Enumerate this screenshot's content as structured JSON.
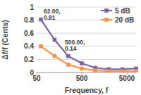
{
  "chart_data": {
    "type": "line",
    "x_label": "Frequency, f",
    "y_label": "Δf/f (Cents)",
    "x": [
      62,
      125,
      250,
      500,
      1000,
      2000,
      4000,
      8000
    ],
    "series": [
      {
        "name": "5 dB",
        "color": "#8064a2",
        "marker": "square",
        "values": [
          0.81,
          0.5,
          0.25,
          0.14,
          0.07,
          0.05,
          0.05,
          0.06
        ]
      },
      {
        "name": "20 dB",
        "color": "#f79646",
        "marker": "square",
        "values": [
          0.4,
          0.25,
          0.12,
          0.06,
          0.03,
          0.02,
          0.02,
          0.02
        ]
      }
    ],
    "xlim": [
      50,
      8000
    ],
    "xticks": [
      50,
      500,
      5000
    ],
    "ylim": [
      0,
      1
    ],
    "yticks": [
      0,
      0.2,
      0.4,
      0.6,
      0.8,
      1
    ],
    "log": "x",
    "grid": true,
    "legend": "top-right",
    "annotations": [
      {
        "text": "62.00, 0.81",
        "x": 62,
        "y": 0.81
      },
      {
        "text": "500.00, 0.14",
        "x": 500,
        "y": 0.14
      }
    ]
  }
}
